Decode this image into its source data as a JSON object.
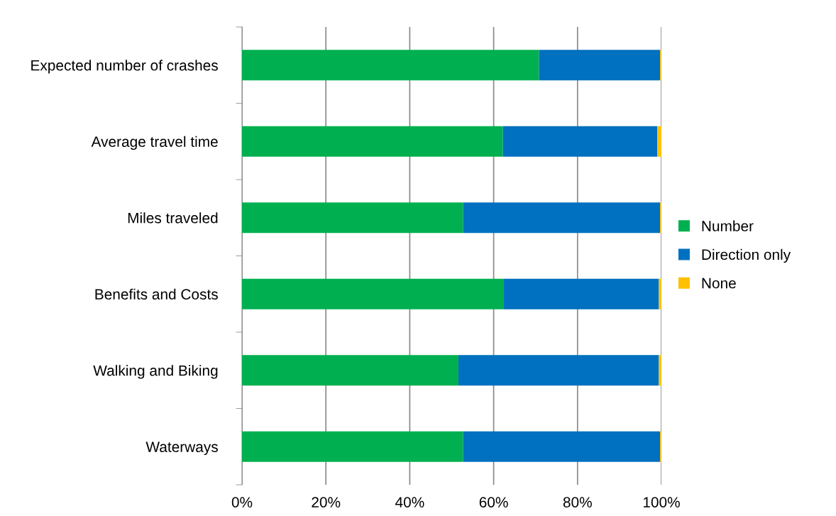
{
  "chart_data": {
    "type": "bar",
    "orientation": "horizontal",
    "stacked": true,
    "categories": [
      "Expected number of crashes",
      "Average travel time",
      "Miles traveled",
      "Benefits and Costs",
      "Walking and Biking",
      "Waterways"
    ],
    "series": [
      {
        "name": "Number",
        "color": "#00b050",
        "values": [
          70.8,
          62.2,
          52.7,
          62.3,
          51.6,
          52.7
        ]
      },
      {
        "name": "Direction only",
        "color": "#0070c0",
        "values": [
          28.9,
          36.8,
          47.0,
          37.1,
          47.8,
          47.0
        ]
      },
      {
        "name": "None",
        "color": "#ffc000",
        "values": [
          0.3,
          1.0,
          0.3,
          0.6,
          0.6,
          0.3
        ]
      }
    ],
    "xlim": [
      0,
      100
    ],
    "xticks": [
      {
        "value": 0,
        "label": "0%"
      },
      {
        "value": 20,
        "label": "20%"
      },
      {
        "value": 40,
        "label": "40%"
      },
      {
        "value": 60,
        "label": "60%"
      },
      {
        "value": 80,
        "label": "80%"
      },
      {
        "value": 100,
        "label": "100%"
      }
    ],
    "grid": "x",
    "legend": "right"
  }
}
